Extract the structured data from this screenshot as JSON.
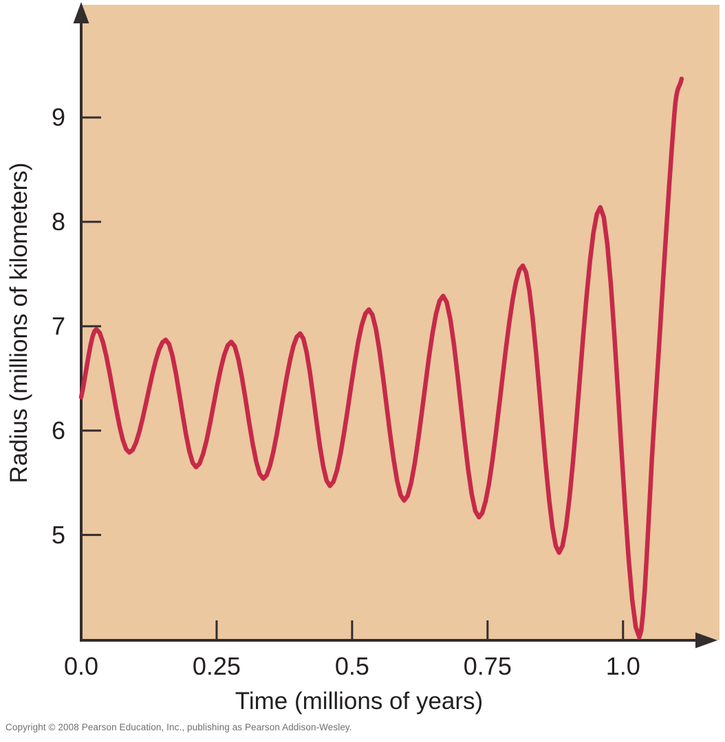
{
  "figure": {
    "copyright": "Copyright © 2008 Pearson Education, Inc., publishing as Pearson Addison-Wesley."
  },
  "colors": {
    "plot_bg": "#EBC8A0",
    "axis": "#332D2E",
    "text": "#231F20",
    "curve": "#C62A49",
    "copyright_text": "#6D6E70"
  },
  "chart_data": {
    "type": "line",
    "title": "",
    "xlabel": "Time (millions of years)",
    "ylabel": "Radius (millions of kilometers)",
    "xlim": [
      0,
      1.178
    ],
    "ylim": [
      3.99,
      10.08
    ],
    "grid": false,
    "legend": "none",
    "x_ticks": [
      {
        "value": 0.0,
        "label": "0.0"
      },
      {
        "value": 0.25,
        "label": "0.25"
      },
      {
        "value": 0.5,
        "label": "0.5"
      },
      {
        "value": 0.75,
        "label": "0.75"
      },
      {
        "value": 1.0,
        "label": "1.0"
      }
    ],
    "y_ticks": [
      {
        "value": 5,
        "label": "5"
      },
      {
        "value": 6,
        "label": "6"
      },
      {
        "value": 7,
        "label": "7"
      },
      {
        "value": 8,
        "label": "8"
      },
      {
        "value": 9,
        "label": "9"
      }
    ],
    "series": [
      {
        "color": "#C62A49",
        "points": [
          {
            "t": 0.0,
            "r": 6.32
          },
          {
            "t": 0.028,
            "r": 6.97,
            "ext": true
          },
          {
            "t": 0.089,
            "r": 5.79,
            "ext": true
          },
          {
            "t": 0.156,
            "r": 6.87,
            "ext": true
          },
          {
            "t": 0.212,
            "r": 5.65,
            "ext": true
          },
          {
            "t": 0.277,
            "r": 6.85,
            "ext": true
          },
          {
            "t": 0.336,
            "r": 5.54,
            "ext": true
          },
          {
            "t": 0.404,
            "r": 6.93,
            "ext": true
          },
          {
            "t": 0.459,
            "r": 5.47,
            "ext": true
          },
          {
            "t": 0.531,
            "r": 7.16,
            "ext": true
          },
          {
            "t": 0.596,
            "r": 5.33,
            "ext": true
          },
          {
            "t": 0.668,
            "r": 7.29,
            "ext": true
          },
          {
            "t": 0.734,
            "r": 5.17,
            "ext": true
          },
          {
            "t": 0.815,
            "r": 7.58,
            "ext": true
          },
          {
            "t": 0.882,
            "r": 4.83,
            "ext": true
          },
          {
            "t": 0.958,
            "r": 8.14,
            "ext": true
          },
          {
            "t": 1.03,
            "r": 4.02,
            "ext": true
          },
          {
            "t": 1.057,
            "r": 6.05
          },
          {
            "t": 1.095,
            "r": 9.05
          },
          {
            "t": 1.108,
            "r": 9.37
          }
        ]
      }
    ]
  }
}
